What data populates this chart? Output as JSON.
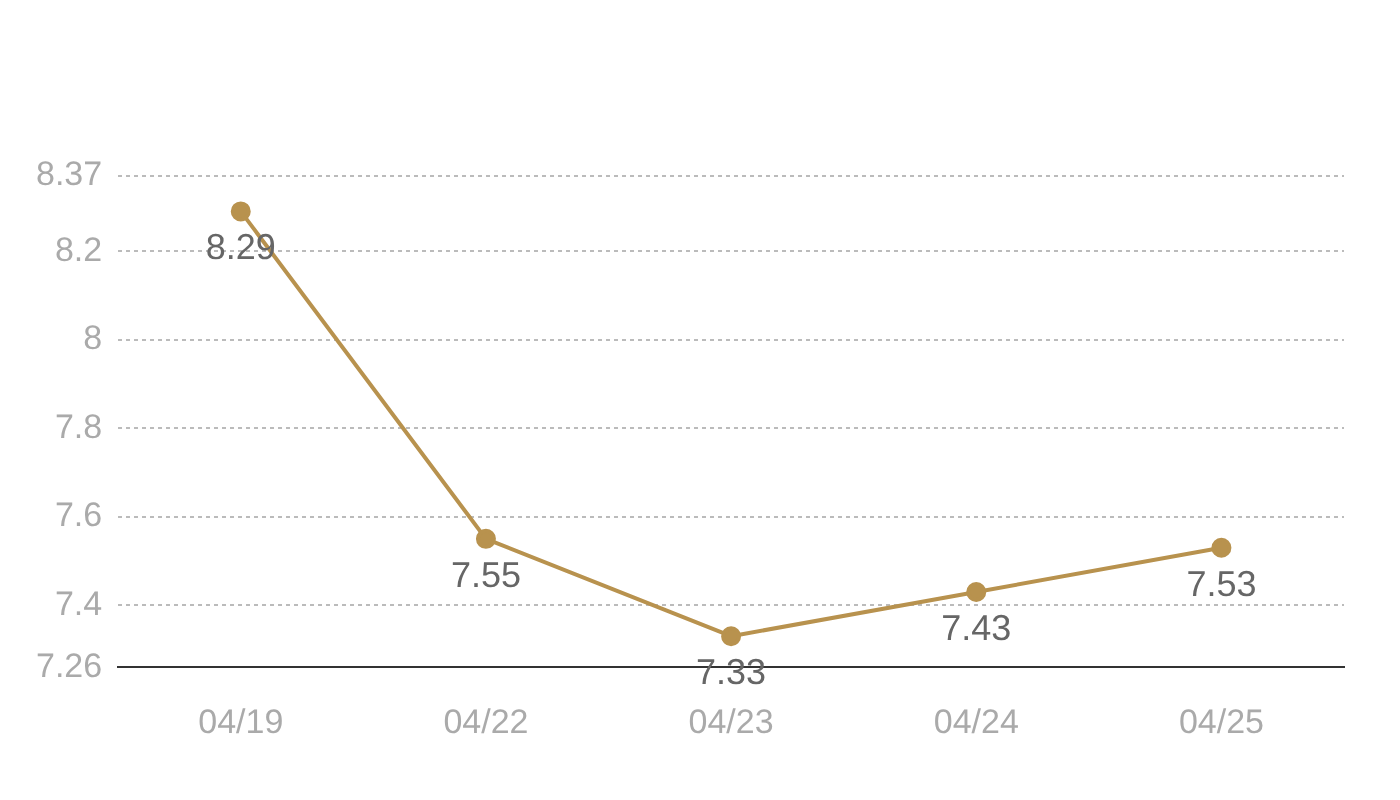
{
  "chart_data": {
    "type": "line",
    "categories": [
      "04/19",
      "04/22",
      "04/23",
      "04/24",
      "04/25"
    ],
    "series": [
      {
        "color": "#b8924e",
        "values": [
          8.29,
          7.55,
          7.33,
          7.43,
          7.53
        ]
      }
    ],
    "ylim": [
      7.26,
      8.37
    ],
    "yticks": [
      7.26,
      7.4,
      7.6,
      7.8,
      8,
      8.2,
      8.37
    ],
    "grid": "y",
    "marker": "circle",
    "line_style": "solid",
    "data_labels": true
  }
}
